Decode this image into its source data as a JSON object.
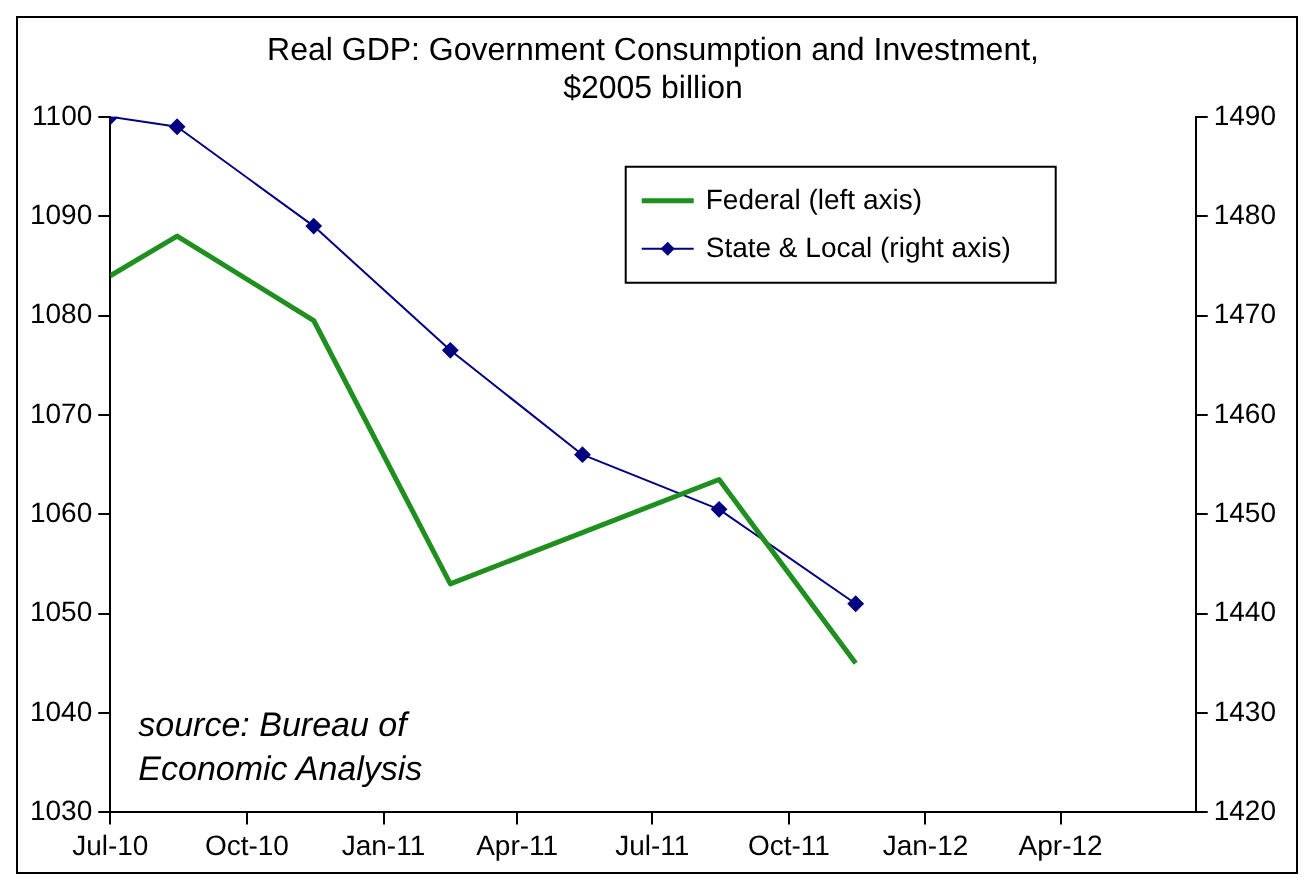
{
  "chart_data": {
    "type": "line",
    "title": [
      "Real GDP: Government Consumption and Investment,",
      "$2005 billion"
    ],
    "xlim": [
      "2010-07-01",
      "2012-07-01"
    ],
    "xticks": [
      {
        "value": "2010-07-01",
        "label": "Jul-10"
      },
      {
        "value": "2010-10-01",
        "label": "Oct-10"
      },
      {
        "value": "2011-01-01",
        "label": "Jan-11"
      },
      {
        "value": "2011-04-01",
        "label": "Apr-11"
      },
      {
        "value": "2011-07-01",
        "label": "Jul-11"
      },
      {
        "value": "2011-10-01",
        "label": "Oct-11"
      },
      {
        "value": "2012-01-01",
        "label": "Jan-12"
      },
      {
        "value": "2012-04-01",
        "label": "Apr-12"
      }
    ],
    "ylim": [
      1030,
      1100
    ],
    "yticks": [
      1030,
      1040,
      1050,
      1060,
      1070,
      1080,
      1090,
      1100
    ],
    "y2lim": [
      1420,
      1490
    ],
    "y2ticks": [
      1420,
      1430,
      1440,
      1450,
      1460,
      1470,
      1480,
      1490
    ],
    "series": [
      {
        "name": "Federal (left axis)",
        "color": "#1f8f1f",
        "marker": "none",
        "x": [
          "2010-07-01",
          "2010-08-15",
          "2010-11-15",
          "2011-02-15",
          "2011-08-15",
          "2011-11-15"
        ],
        "values": [
          1084,
          1088,
          1079.5,
          1053,
          1063.5,
          1045
        ]
      },
      {
        "name": "State & Local (right axis)",
        "color": "#000080",
        "marker": "diamond",
        "axis": "y2",
        "x": [
          "2010-07-01",
          "2010-08-15",
          "2010-11-15",
          "2011-02-15",
          "2011-05-15",
          "2011-08-15",
          "2011-11-15"
        ],
        "values": [
          1490,
          1489,
          1479,
          1466.5,
          1456,
          1450.5,
          1441
        ]
      }
    ],
    "legend": "top right",
    "grid": false,
    "annotations": [
      "source: Bureau of Economic Analysis"
    ]
  }
}
